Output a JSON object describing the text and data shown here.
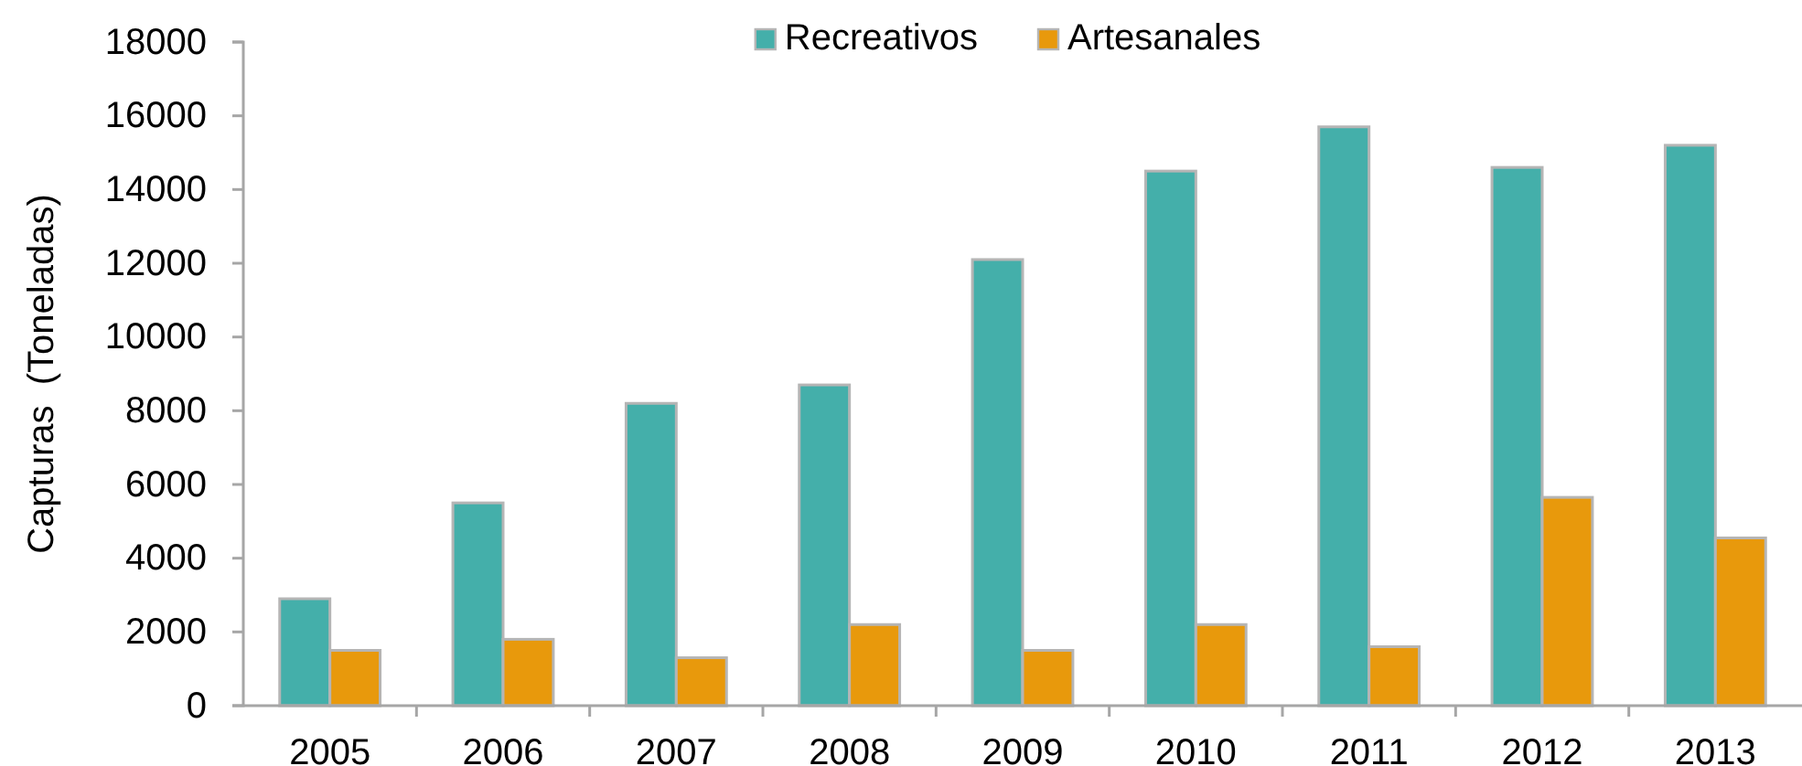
{
  "chart_data": {
    "type": "bar",
    "ylabel": "Capturas  (Toneladas)",
    "categories": [
      "2005",
      "2006",
      "2007",
      "2008",
      "2009",
      "2010",
      "2011",
      "2012",
      "2013"
    ],
    "series": [
      {
        "name": "Recreativos",
        "color": "#44afaa",
        "values": [
          2900,
          5500,
          8200,
          8700,
          12100,
          14500,
          15700,
          14600,
          15200
        ]
      },
      {
        "name": "Artesanales",
        "color": "#e8990c",
        "values": [
          1500,
          1800,
          1300,
          2200,
          1500,
          2200,
          1600,
          5650,
          4550
        ]
      }
    ],
    "ylim": [
      0,
      18000
    ],
    "yticks": [
      0,
      2000,
      4000,
      6000,
      8000,
      10000,
      12000,
      14000,
      16000,
      18000
    ],
    "legend": "top"
  }
}
